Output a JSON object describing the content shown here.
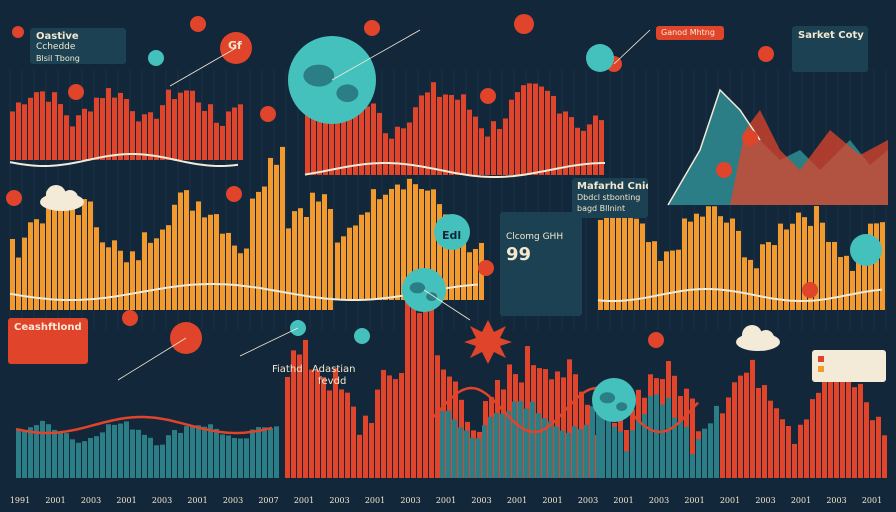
{
  "labels": {
    "top_left_box": [
      "Oastive",
      "Cchedde",
      "Blsil Tbong"
    ],
    "top_right_box": "Sarket Coty",
    "mid_right_box": [
      "Mafarhd Cnidt",
      "Dbdcl stbonting",
      "bagd Bllnint"
    ],
    "center_box_title": "Clcomg GHH",
    "center_box_number": "99",
    "left_orange_box": "Ceashftlond",
    "center_small_labels": [
      "Fiathd",
      "Adastian",
      "fevdd"
    ],
    "orange_badge": "Ganod Mhtng",
    "globe_badge_text": "Edl",
    "badge_gf": "Gf"
  },
  "years": [
    "1991",
    "2001",
    "2003",
    "2001",
    "2003",
    "2001",
    "2003",
    "2007",
    "2001",
    "2003",
    "2001",
    "2003",
    "2001",
    "2003",
    "2001",
    "2001",
    "2003",
    "2001",
    "2003",
    "2001",
    "2001",
    "2003",
    "2001",
    "2003",
    "2001"
  ],
  "colors": {
    "background": "#13273a",
    "red": "#e0442a",
    "orange": "#f29a2e",
    "teal": "#2b7d86",
    "cyan": "#45c1bd",
    "cream": "#f4ead8"
  }
}
